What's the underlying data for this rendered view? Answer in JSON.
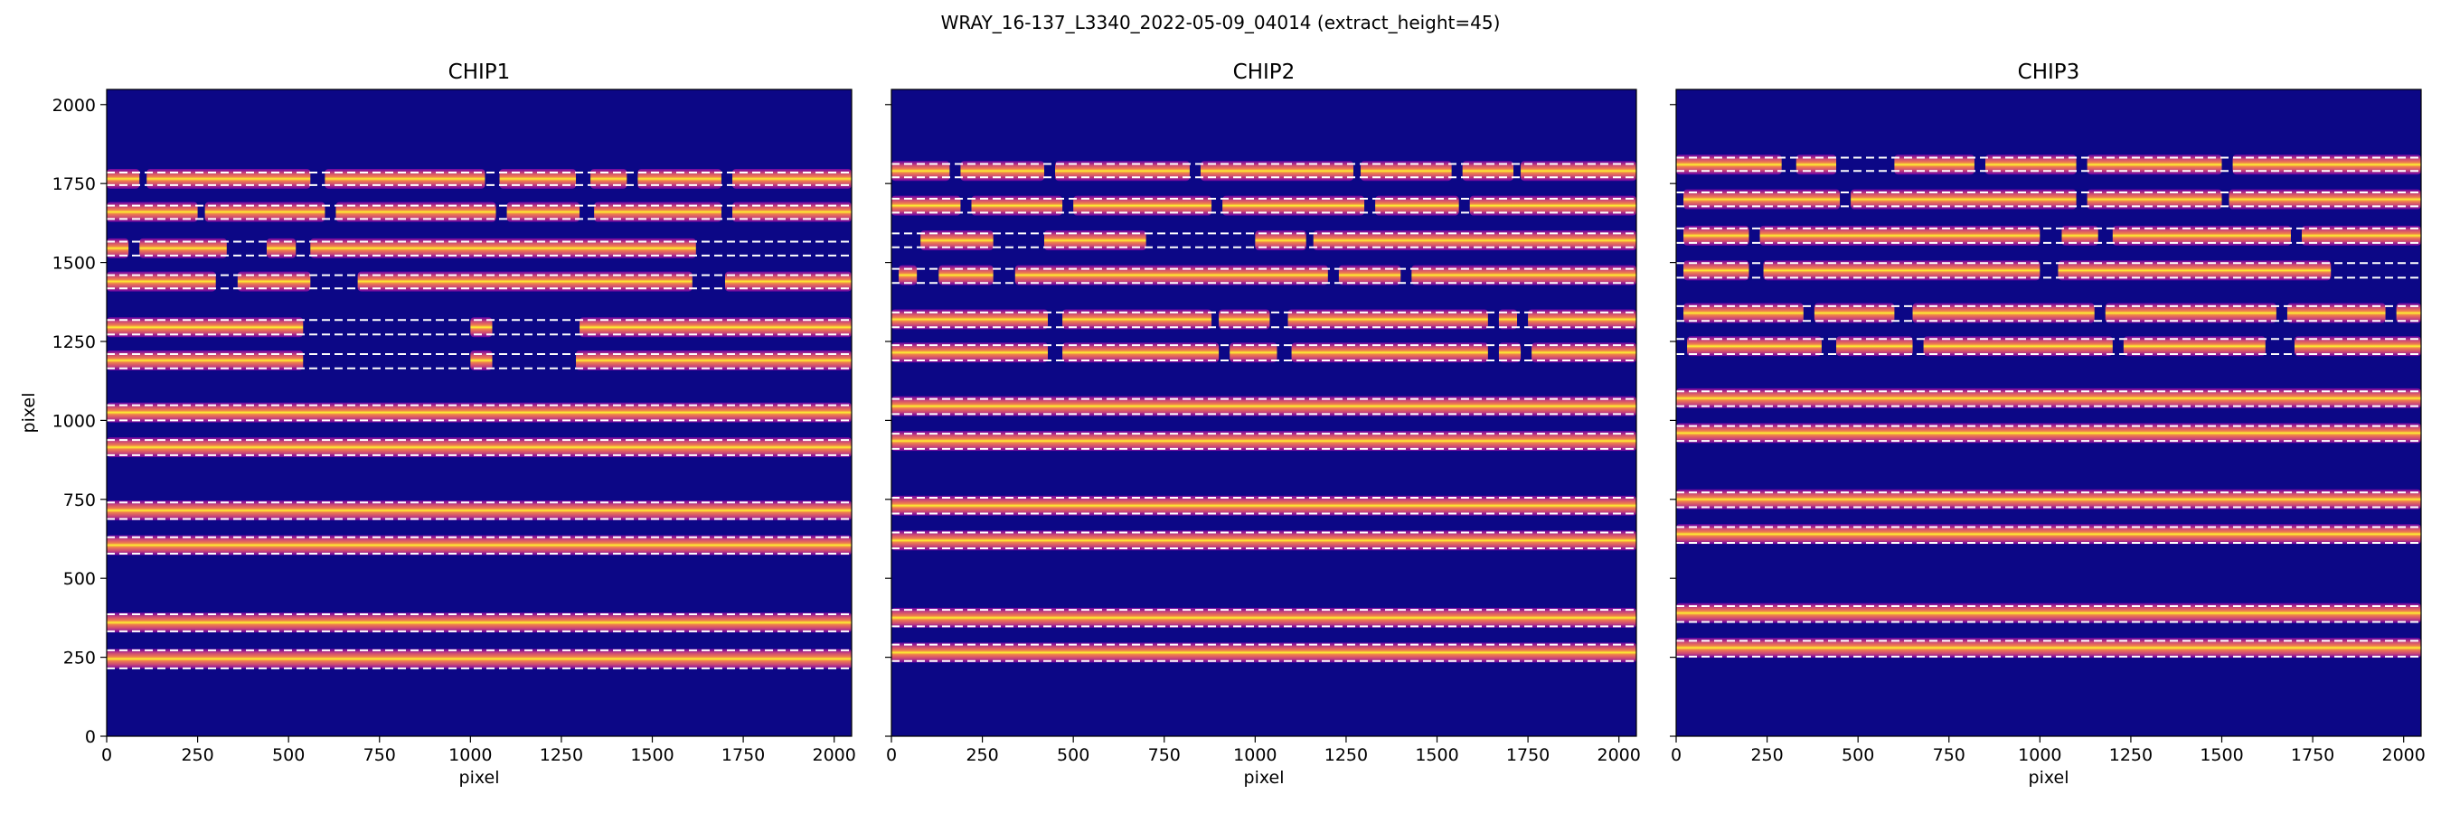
{
  "figure": {
    "title": "WRAY_16-137_L3340_2022-05-09_04014  (extract_height=45)"
  },
  "colors": {
    "background": "#0c0786",
    "trace_core": "#fdf331",
    "trace_mid": "#f07e4d",
    "trace_edge": "#c8437a",
    "trace_faint": "#7a03a8",
    "dashed_line": "#ffffff"
  },
  "chart_data": [
    {
      "type": "heatmap",
      "title": "CHIP1",
      "xlabel": "pixel",
      "ylabel": "pixel",
      "xlim": [
        0,
        2048
      ],
      "ylim": [
        0,
        2048
      ],
      "xticks": [
        0,
        250,
        500,
        750,
        1000,
        1250,
        1500,
        1750,
        2000
      ],
      "yticks": [
        0,
        250,
        500,
        750,
        1000,
        1250,
        1500,
        1750,
        2000
      ],
      "orders": [
        {
          "y": 1765,
          "gaps": [
            [
              90,
              110
            ],
            [
              560,
              600
            ],
            [
              1040,
              1080
            ],
            [
              1290,
              1330
            ],
            [
              1430,
              1460
            ],
            [
              1690,
              1720
            ]
          ]
        },
        {
          "y": 1660,
          "gaps": [
            [
              250,
              270
            ],
            [
              600,
              630
            ],
            [
              1070,
              1100
            ],
            [
              1300,
              1340
            ],
            [
              1690,
              1720
            ]
          ]
        },
        {
          "y": 1545,
          "gaps": [
            [
              60,
              90
            ],
            [
              330,
              440
            ],
            [
              520,
              560
            ],
            [
              1620,
              2048
            ]
          ]
        },
        {
          "y": 1440,
          "gaps": [
            [
              300,
              360
            ],
            [
              560,
              690
            ],
            [
              1610,
              1700
            ]
          ]
        },
        {
          "y": 1295,
          "gaps": [
            [
              540,
              1000
            ],
            [
              1060,
              1300
            ]
          ]
        },
        {
          "y": 1190,
          "gaps": [
            [
              540,
              1000
            ],
            [
              1060,
              1290
            ]
          ]
        },
        {
          "y": 1025,
          "gaps": []
        },
        {
          "y": 915,
          "gaps": []
        },
        {
          "y": 715,
          "gaps": []
        },
        {
          "y": 605,
          "gaps": []
        },
        {
          "y": 360,
          "gaps": []
        },
        {
          "y": 245,
          "gaps": []
        }
      ],
      "trace_lines": [
        {
          "y": 1765,
          "lower": 1745,
          "upper": 1785
        },
        {
          "y": 1660,
          "lower": 1638,
          "upper": 1680
        },
        {
          "y": 1545,
          "lower": 1522,
          "upper": 1566
        },
        {
          "y": 1440,
          "lower": 1418,
          "upper": 1460
        },
        {
          "y": 1295,
          "lower": 1272,
          "upper": 1318
        },
        {
          "y": 1190,
          "lower": 1165,
          "upper": 1210
        },
        {
          "y": 1025,
          "lower": 1000,
          "upper": 1048
        },
        {
          "y": 915,
          "lower": 890,
          "upper": 938
        },
        {
          "y": 715,
          "lower": 688,
          "upper": 740
        },
        {
          "y": 605,
          "lower": 578,
          "upper": 630
        },
        {
          "y": 360,
          "lower": 332,
          "upper": 386
        },
        {
          "y": 245,
          "lower": 215,
          "upper": 272
        }
      ]
    },
    {
      "type": "heatmap",
      "title": "CHIP2",
      "xlabel": "pixel",
      "ylabel": "",
      "xlim": [
        0,
        2048
      ],
      "ylim": [
        0,
        2048
      ],
      "xticks": [
        0,
        250,
        500,
        750,
        1000,
        1250,
        1500,
        1750,
        2000
      ],
      "yticks": [
        0,
        250,
        500,
        750,
        1000,
        1250,
        1500,
        1750,
        2000
      ],
      "orders": [
        {
          "y": 1790,
          "gaps": [
            [
              160,
              190
            ],
            [
              420,
              450
            ],
            [
              820,
              850
            ],
            [
              1270,
              1290
            ],
            [
              1540,
              1570
            ],
            [
              1710,
              1730
            ]
          ]
        },
        {
          "y": 1680,
          "gaps": [
            [
              190,
              220
            ],
            [
              470,
              500
            ],
            [
              880,
              910
            ],
            [
              1300,
              1330
            ],
            [
              1560,
              1590
            ]
          ]
        },
        {
          "y": 1570,
          "gaps": [
            [
              0,
              80
            ],
            [
              280,
              420
            ],
            [
              700,
              1000
            ],
            [
              1140,
              1160
            ]
          ]
        },
        {
          "y": 1460,
          "gaps": [
            [
              0,
              20
            ],
            [
              70,
              130
            ],
            [
              280,
              340
            ],
            [
              1200,
              1230
            ],
            [
              1400,
              1430
            ]
          ]
        },
        {
          "y": 1320,
          "gaps": [
            [
              430,
              470
            ],
            [
              880,
              900
            ],
            [
              1040,
              1090
            ],
            [
              1640,
              1670
            ],
            [
              1720,
              1750
            ]
          ]
        },
        {
          "y": 1215,
          "gaps": [
            [
              430,
              470
            ],
            [
              900,
              930
            ],
            [
              1060,
              1100
            ],
            [
              1640,
              1670
            ],
            [
              1730,
              1760
            ]
          ]
        },
        {
          "y": 1045,
          "gaps": []
        },
        {
          "y": 935,
          "gaps": []
        },
        {
          "y": 730,
          "gaps": []
        },
        {
          "y": 620,
          "gaps": []
        },
        {
          "y": 375,
          "gaps": []
        },
        {
          "y": 265,
          "gaps": []
        }
      ],
      "trace_lines": [
        {
          "y": 1790,
          "lower": 1770,
          "upper": 1812
        },
        {
          "y": 1680,
          "lower": 1658,
          "upper": 1702
        },
        {
          "y": 1570,
          "lower": 1548,
          "upper": 1592
        },
        {
          "y": 1460,
          "lower": 1435,
          "upper": 1480
        },
        {
          "y": 1320,
          "lower": 1295,
          "upper": 1342
        },
        {
          "y": 1215,
          "lower": 1190,
          "upper": 1238
        },
        {
          "y": 1045,
          "lower": 1020,
          "upper": 1068
        },
        {
          "y": 935,
          "lower": 910,
          "upper": 958
        },
        {
          "y": 730,
          "lower": 705,
          "upper": 755
        },
        {
          "y": 620,
          "lower": 595,
          "upper": 645
        },
        {
          "y": 375,
          "lower": 348,
          "upper": 400
        },
        {
          "y": 265,
          "lower": 238,
          "upper": 290
        }
      ]
    },
    {
      "type": "heatmap",
      "title": "CHIP3",
      "xlabel": "pixel",
      "ylabel": "",
      "xlim": [
        0,
        2048
      ],
      "ylim": [
        0,
        2048
      ],
      "xticks": [
        0,
        250,
        500,
        750,
        1000,
        1250,
        1500,
        1750,
        2000
      ],
      "yticks": [
        0,
        250,
        500,
        750,
        1000,
        1250,
        1500,
        1750,
        2000
      ],
      "orders": [
        {
          "y": 1810,
          "gaps": [
            [
              290,
              330
            ],
            [
              440,
              600
            ],
            [
              820,
              850
            ],
            [
              1100,
              1130
            ],
            [
              1500,
              1530
            ]
          ]
        },
        {
          "y": 1700,
          "gaps": [
            [
              0,
              20
            ],
            [
              450,
              480
            ],
            [
              1100,
              1130
            ],
            [
              1500,
              1520
            ]
          ]
        },
        {
          "y": 1585,
          "gaps": [
            [
              0,
              20
            ],
            [
              200,
              230
            ],
            [
              1000,
              1060
            ],
            [
              1160,
              1200
            ],
            [
              1690,
              1720
            ]
          ]
        },
        {
          "y": 1475,
          "gaps": [
            [
              0,
              20
            ],
            [
              200,
              240
            ],
            [
              1000,
              1050
            ],
            [
              1800,
              2048
            ]
          ]
        },
        {
          "y": 1340,
          "gaps": [
            [
              0,
              20
            ],
            [
              350,
              380
            ],
            [
              600,
              650
            ],
            [
              1150,
              1180
            ],
            [
              1650,
              1680
            ],
            [
              1950,
              1980
            ]
          ]
        },
        {
          "y": 1235,
          "gaps": [
            [
              0,
              30
            ],
            [
              400,
              440
            ],
            [
              650,
              680
            ],
            [
              1200,
              1230
            ],
            [
              1620,
              1700
            ]
          ]
        },
        {
          "y": 1070,
          "gaps": []
        },
        {
          "y": 960,
          "gaps": []
        },
        {
          "y": 750,
          "gaps": []
        },
        {
          "y": 640,
          "gaps": []
        },
        {
          "y": 390,
          "gaps": []
        },
        {
          "y": 280,
          "gaps": []
        }
      ],
      "trace_lines": [
        {
          "y": 1810,
          "lower": 1790,
          "upper": 1832
        },
        {
          "y": 1700,
          "lower": 1678,
          "upper": 1722
        },
        {
          "y": 1585,
          "lower": 1562,
          "upper": 1608
        },
        {
          "y": 1475,
          "lower": 1452,
          "upper": 1498
        },
        {
          "y": 1340,
          "lower": 1315,
          "upper": 1362
        },
        {
          "y": 1235,
          "lower": 1210,
          "upper": 1258
        },
        {
          "y": 1070,
          "lower": 1045,
          "upper": 1092
        },
        {
          "y": 960,
          "lower": 935,
          "upper": 982
        },
        {
          "y": 750,
          "lower": 725,
          "upper": 772
        },
        {
          "y": 640,
          "lower": 612,
          "upper": 662
        },
        {
          "y": 390,
          "lower": 362,
          "upper": 412
        },
        {
          "y": 280,
          "lower": 252,
          "upper": 302
        }
      ]
    }
  ]
}
